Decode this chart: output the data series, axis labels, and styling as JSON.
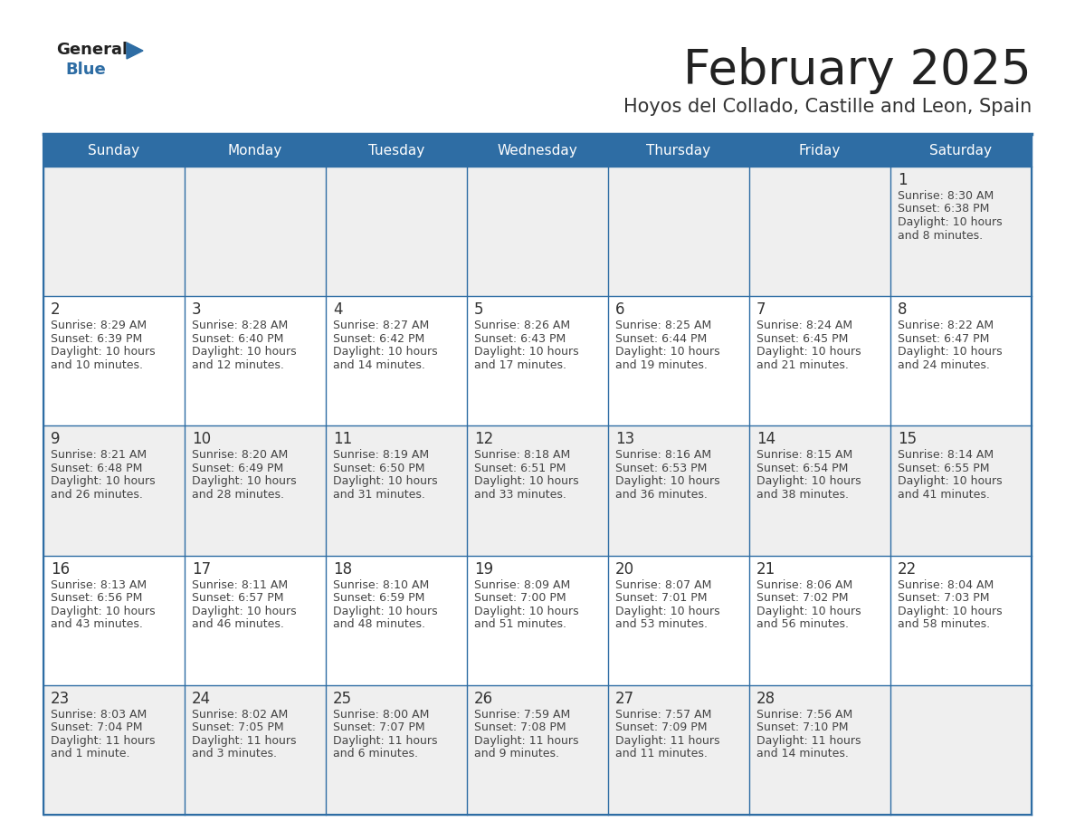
{
  "title": "February 2025",
  "subtitle": "Hoyos del Collado, Castille and Leon, Spain",
  "header_bg": "#2e6da4",
  "header_text": "#ffffff",
  "cell_bg_odd": "#efefef",
  "cell_bg_even": "#ffffff",
  "day_headers": [
    "Sunday",
    "Monday",
    "Tuesday",
    "Wednesday",
    "Thursday",
    "Friday",
    "Saturday"
  ],
  "title_color": "#222222",
  "subtitle_color": "#333333",
  "line_color": "#2e6da4",
  "day_num_color": "#333333",
  "text_color": "#444444",
  "logo_general_color": "#222222",
  "logo_blue_color": "#2e6da4",
  "num_cols": 7,
  "calendar": [
    [
      null,
      null,
      null,
      null,
      null,
      null,
      {
        "day": 1,
        "sunrise": "8:30 AM",
        "sunset": "6:38 PM",
        "daylight": "10 hours and 8 minutes."
      }
    ],
    [
      {
        "day": 2,
        "sunrise": "8:29 AM",
        "sunset": "6:39 PM",
        "daylight": "10 hours and 10 minutes."
      },
      {
        "day": 3,
        "sunrise": "8:28 AM",
        "sunset": "6:40 PM",
        "daylight": "10 hours and 12 minutes."
      },
      {
        "day": 4,
        "sunrise": "8:27 AM",
        "sunset": "6:42 PM",
        "daylight": "10 hours and 14 minutes."
      },
      {
        "day": 5,
        "sunrise": "8:26 AM",
        "sunset": "6:43 PM",
        "daylight": "10 hours and 17 minutes."
      },
      {
        "day": 6,
        "sunrise": "8:25 AM",
        "sunset": "6:44 PM",
        "daylight": "10 hours and 19 minutes."
      },
      {
        "day": 7,
        "sunrise": "8:24 AM",
        "sunset": "6:45 PM",
        "daylight": "10 hours and 21 minutes."
      },
      {
        "day": 8,
        "sunrise": "8:22 AM",
        "sunset": "6:47 PM",
        "daylight": "10 hours and 24 minutes."
      }
    ],
    [
      {
        "day": 9,
        "sunrise": "8:21 AM",
        "sunset": "6:48 PM",
        "daylight": "10 hours and 26 minutes."
      },
      {
        "day": 10,
        "sunrise": "8:20 AM",
        "sunset": "6:49 PM",
        "daylight": "10 hours and 28 minutes."
      },
      {
        "day": 11,
        "sunrise": "8:19 AM",
        "sunset": "6:50 PM",
        "daylight": "10 hours and 31 minutes."
      },
      {
        "day": 12,
        "sunrise": "8:18 AM",
        "sunset": "6:51 PM",
        "daylight": "10 hours and 33 minutes."
      },
      {
        "day": 13,
        "sunrise": "8:16 AM",
        "sunset": "6:53 PM",
        "daylight": "10 hours and 36 minutes."
      },
      {
        "day": 14,
        "sunrise": "8:15 AM",
        "sunset": "6:54 PM",
        "daylight": "10 hours and 38 minutes."
      },
      {
        "day": 15,
        "sunrise": "8:14 AM",
        "sunset": "6:55 PM",
        "daylight": "10 hours and 41 minutes."
      }
    ],
    [
      {
        "day": 16,
        "sunrise": "8:13 AM",
        "sunset": "6:56 PM",
        "daylight": "10 hours and 43 minutes."
      },
      {
        "day": 17,
        "sunrise": "8:11 AM",
        "sunset": "6:57 PM",
        "daylight": "10 hours and 46 minutes."
      },
      {
        "day": 18,
        "sunrise": "8:10 AM",
        "sunset": "6:59 PM",
        "daylight": "10 hours and 48 minutes."
      },
      {
        "day": 19,
        "sunrise": "8:09 AM",
        "sunset": "7:00 PM",
        "daylight": "10 hours and 51 minutes."
      },
      {
        "day": 20,
        "sunrise": "8:07 AM",
        "sunset": "7:01 PM",
        "daylight": "10 hours and 53 minutes."
      },
      {
        "day": 21,
        "sunrise": "8:06 AM",
        "sunset": "7:02 PM",
        "daylight": "10 hours and 56 minutes."
      },
      {
        "day": 22,
        "sunrise": "8:04 AM",
        "sunset": "7:03 PM",
        "daylight": "10 hours and 58 minutes."
      }
    ],
    [
      {
        "day": 23,
        "sunrise": "8:03 AM",
        "sunset": "7:04 PM",
        "daylight": "11 hours and 1 minute."
      },
      {
        "day": 24,
        "sunrise": "8:02 AM",
        "sunset": "7:05 PM",
        "daylight": "11 hours and 3 minutes."
      },
      {
        "day": 25,
        "sunrise": "8:00 AM",
        "sunset": "7:07 PM",
        "daylight": "11 hours and 6 minutes."
      },
      {
        "day": 26,
        "sunrise": "7:59 AM",
        "sunset": "7:08 PM",
        "daylight": "11 hours and 9 minutes."
      },
      {
        "day": 27,
        "sunrise": "7:57 AM",
        "sunset": "7:09 PM",
        "daylight": "11 hours and 11 minutes."
      },
      {
        "day": 28,
        "sunrise": "7:56 AM",
        "sunset": "7:10 PM",
        "daylight": "11 hours and 14 minutes."
      },
      null
    ]
  ]
}
